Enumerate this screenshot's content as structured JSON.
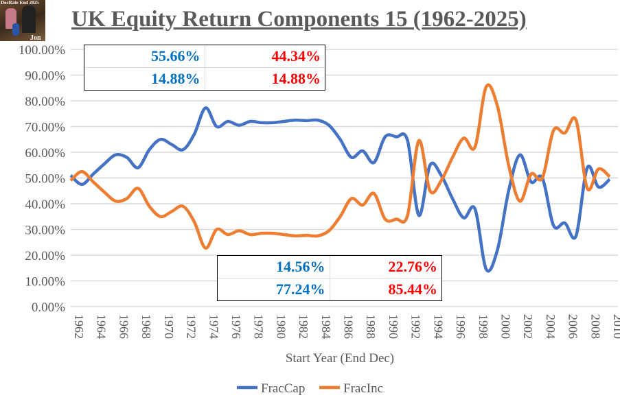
{
  "chart_data": {
    "type": "line",
    "title": "UK Equity Return Components 15 (1962-2025)",
    "xlabel": "Start Year (End Dec)",
    "ylabel": "",
    "ylim": [
      0,
      100
    ],
    "y_ticks": [
      "0.00%",
      "10.00%",
      "20.00%",
      "30.00%",
      "40.00%",
      "50.00%",
      "60.00%",
      "70.00%",
      "80.00%",
      "90.00%",
      "100.00%"
    ],
    "x_ticks": [
      "1962",
      "1964",
      "1966",
      "1968",
      "1970",
      "1972",
      "1974",
      "1976",
      "1978",
      "1980",
      "1982",
      "1984",
      "1986",
      "1988",
      "1990",
      "1992",
      "1994",
      "1996",
      "1998",
      "2000",
      "2002",
      "2004",
      "2006",
      "2008",
      "2010"
    ],
    "grid": true,
    "legend": "bottom",
    "x": [
      1962,
      1963,
      1964,
      1965,
      1966,
      1967,
      1968,
      1969,
      1970,
      1971,
      1972,
      1973,
      1974,
      1975,
      1976,
      1977,
      1978,
      1979,
      1980,
      1981,
      1982,
      1983,
      1984,
      1985,
      1986,
      1987,
      1988,
      1989,
      1990,
      1991,
      1992,
      1993,
      1994,
      1995,
      1996,
      1997,
      1998,
      1999,
      2000,
      2001,
      2002,
      2003,
      2004,
      2005,
      2006,
      2007,
      2008,
      2009,
      2010
    ],
    "series": [
      {
        "name": "FracCap",
        "color": "#4472c4",
        "values": [
          51,
          47.5,
          51.5,
          55.5,
          59,
          58,
          54,
          61,
          65,
          63,
          61,
          67,
          77.24,
          70,
          72,
          70.5,
          72,
          71.5,
          71.5,
          72,
          72.5,
          72.3,
          72.5,
          70.5,
          65,
          58,
          60.5,
          56,
          66,
          66,
          64.5,
          35.5,
          55,
          51,
          42,
          34.5,
          38,
          14.56,
          22,
          45,
          59,
          48.5,
          50,
          31.5,
          32.5,
          27.5,
          54,
          46.5,
          49.5
        ]
      },
      {
        "name": "FracInc",
        "color": "#ed7d31",
        "values": [
          49,
          52.5,
          48.5,
          44.5,
          41,
          42,
          46,
          39,
          35,
          37,
          39,
          33,
          22.76,
          30,
          28,
          29.5,
          28,
          28.5,
          28.5,
          28,
          27.5,
          27.7,
          27.5,
          29.5,
          35,
          42,
          39.5,
          44,
          34,
          34,
          35.5,
          64.5,
          45,
          49,
          58,
          65.5,
          62,
          85.44,
          78,
          55,
          41,
          51.5,
          50,
          68.5,
          67.5,
          72.5,
          46,
          53.5,
          50.5
        ]
      }
    ]
  },
  "summary_top": {
    "rows": [
      [
        "55.66%",
        "44.34%"
      ],
      [
        "14.88%",
        "14.88%"
      ]
    ]
  },
  "summary_bottom": {
    "rows": [
      [
        "14.56%",
        "22.76%"
      ],
      [
        "77.24%",
        "85.44%"
      ]
    ]
  },
  "logo_text": [
    "DocRate End 2025",
    "Jon"
  ]
}
